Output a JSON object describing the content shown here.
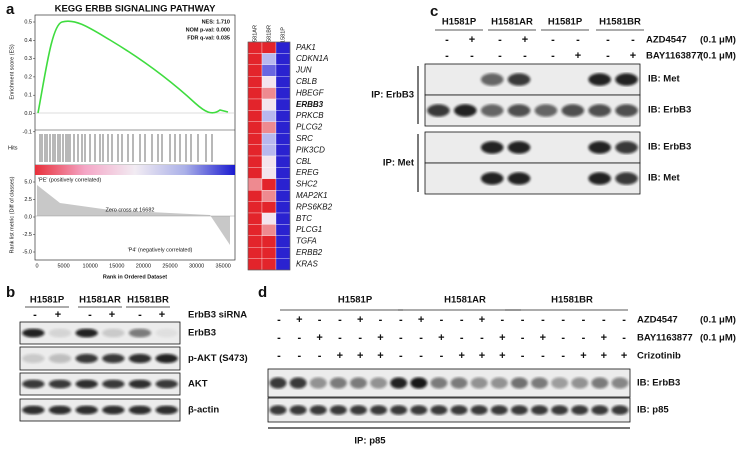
{
  "panels": {
    "a": {
      "label": "a",
      "title": "KEGG ERBB SIGNALING PATHWAY",
      "stats": [
        "NES: 1.710",
        "NOM p-val: 0.000",
        "FDR q-val: 0.035"
      ],
      "es_axis_label": "Enrichment score (ES)",
      "es_ticks": [
        "0.5",
        "0.4",
        "0.3",
        "0.2",
        "0.1",
        "0.0",
        "-0.1"
      ],
      "hits_label": "Hits",
      "rank_axis_label": "Rank list metric (Diff of classes)",
      "rank_ticks": [
        "5.0",
        "2.5",
        "0.0",
        "-2.5",
        "-5.0"
      ],
      "pos_label": "'PE' (positively correlated)",
      "zero_cross": "Zero cross at 16682",
      "neg_label": "'P4' (negatively correlated)",
      "x_ticks": [
        "0",
        "5000",
        "10000",
        "15000",
        "20000",
        "25000",
        "30000",
        "35000"
      ],
      "x_label": "Rank in Ordered Dataset",
      "heatmap": {
        "columns": [
          "H1581AR",
          "H1581BR",
          "H1581P"
        ],
        "genes": [
          "PAK1",
          "CDKN1A",
          "JUN",
          "CBLB",
          "HBEGF",
          "ERBB3",
          "PRKCB",
          "PLCG2",
          "SRC",
          "PIK3CD",
          "CBL",
          "EREG",
          "SHC2",
          "MAP2K1",
          "RPS6KB2",
          "BTC",
          "PLCG1",
          "TGFA",
          "ERBB2",
          "KRAS"
        ],
        "highlighted_gene_index": 5,
        "colors": [
          [
            "#e3242b",
            "#e3242b",
            "#2a22d0"
          ],
          [
            "#e3242b",
            "#b8b8ee",
            "#2a22d0"
          ],
          [
            "#e3242b",
            "#6a66e0",
            "#2a22d0"
          ],
          [
            "#e3242b",
            "#f3e4ee",
            "#2a22d0"
          ],
          [
            "#e3242b",
            "#ee8a90",
            "#2a22d0"
          ],
          [
            "#e3242b",
            "#f3e4ee",
            "#2a22d0"
          ],
          [
            "#e3242b",
            "#b8b8ee",
            "#2a22d0"
          ],
          [
            "#e3242b",
            "#ee8a90",
            "#2a22d0"
          ],
          [
            "#e3242b",
            "#b8b8ee",
            "#2a22d0"
          ],
          [
            "#e3242b",
            "#b8b8ee",
            "#2a22d0"
          ],
          [
            "#e3242b",
            "#f3e4ee",
            "#2a22d0"
          ],
          [
            "#e3242b",
            "#f3e4ee",
            "#2a22d0"
          ],
          [
            "#ee8a90",
            "#e3242b",
            "#2a22d0"
          ],
          [
            "#e3242b",
            "#ee8a90",
            "#2a22d0"
          ],
          [
            "#e3242b",
            "#e3242b",
            "#2a22d0"
          ],
          [
            "#e3242b",
            "#f3e4ee",
            "#2a22d0"
          ],
          [
            "#e3242b",
            "#ee8a90",
            "#2a22d0"
          ],
          [
            "#e3242b",
            "#e3242b",
            "#2a22d0"
          ],
          [
            "#e3242b",
            "#e3242b",
            "#2a22d0"
          ],
          [
            "#e3242b",
            "#e3242b",
            "#2a22d0"
          ]
        ]
      }
    },
    "b": {
      "label": "b",
      "cell_lines": [
        "H1581P",
        "H1581AR",
        "H1581BR"
      ],
      "sirna_label": "ErbB3 siRNA",
      "sirna": [
        "-",
        "+",
        "-",
        "+",
        "-",
        "+"
      ],
      "blots": [
        "ErbB3",
        "p-AKT (S473)",
        "AKT",
        "β-actin"
      ]
    },
    "c": {
      "label": "c",
      "cell_lines": [
        "H1581P",
        "H1581AR",
        "H1581P",
        "H1581BR"
      ],
      "treatments": [
        {
          "name": "AZD4547",
          "dose": "(0.1 μM)",
          "signs": [
            "-",
            "+",
            "-",
            "+",
            "-",
            "-",
            "-",
            "-"
          ]
        },
        {
          "name": "BAY1163877",
          "dose": "(0.1 μM)",
          "signs": [
            "-",
            "-",
            "-",
            "-",
            "-",
            "+",
            "-",
            "+"
          ]
        }
      ],
      "ips": [
        {
          "ip": "IP: ErbB3",
          "ibs": [
            "IB: Met",
            "IB: ErbB3"
          ]
        },
        {
          "ip": "IP: Met",
          "ibs": [
            "IB: ErbB3",
            "IB: Met"
          ]
        }
      ]
    },
    "d": {
      "label": "d",
      "cell_lines": [
        "H1581P",
        "H1581AR",
        "H1581BR"
      ],
      "treatments": [
        {
          "name": "AZD4547",
          "dose": "(0.1 μM)",
          "signs": [
            "-",
            "+",
            "-",
            "-",
            "+",
            "-",
            "-",
            "+",
            "-",
            "-",
            "+",
            "-",
            "-",
            "-",
            "-",
            "-",
            "-",
            "-"
          ]
        },
        {
          "name": "BAY1163877",
          "dose": "(0.1 μM)",
          "signs": [
            "-",
            "-",
            "+",
            "-",
            "-",
            "+",
            "-",
            "-",
            "+",
            "-",
            "-",
            "+",
            "-",
            "+",
            "-",
            "-",
            "+",
            "-"
          ]
        },
        {
          "name": "Crizotinib",
          "signs": [
            "-",
            "-",
            "-",
            "+",
            "+",
            "+",
            "-",
            "-",
            "-",
            "+",
            "+",
            "+",
            "-",
            "-",
            "-",
            "+",
            "+",
            "+"
          ]
        }
      ],
      "ibs": [
        "IB: ErbB3",
        "IB: p85"
      ],
      "ip": "IP: p85"
    }
  }
}
